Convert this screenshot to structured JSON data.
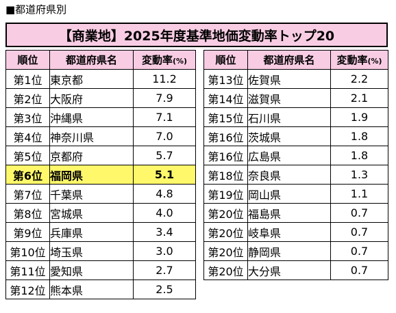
{
  "caption": "■都道府県別",
  "title": "【商業地】2025年度基準地価変動率トップ20",
  "headers": {
    "rank": "順位",
    "prefecture": "都道府県名",
    "change": "変動率",
    "unit": "(%)"
  },
  "left_rows": [
    {
      "rank": "第1位",
      "prefecture": "東京都",
      "change": "11.2"
    },
    {
      "rank": "第2位",
      "prefecture": "大阪府",
      "change": "7.9"
    },
    {
      "rank": "第3位",
      "prefecture": "沖縄県",
      "change": "7.1"
    },
    {
      "rank": "第4位",
      "prefecture": "神奈川県",
      "change": "7.0"
    },
    {
      "rank": "第5位",
      "prefecture": "京都府",
      "change": "5.7"
    },
    {
      "rank": "第6位",
      "prefecture": "福岡県",
      "change": "5.1",
      "highlight": true
    },
    {
      "rank": "第7位",
      "prefecture": "千葉県",
      "change": "4.8"
    },
    {
      "rank": "第8位",
      "prefecture": "宮城県",
      "change": "4.0"
    },
    {
      "rank": "第9位",
      "prefecture": "兵庫県",
      "change": "3.4"
    },
    {
      "rank": "第10位",
      "prefecture": "埼玉県",
      "change": "3.0"
    },
    {
      "rank": "第11位",
      "prefecture": "愛知県",
      "change": "2.7"
    },
    {
      "rank": "第12位",
      "prefecture": "熊本県",
      "change": "2.5"
    }
  ],
  "right_rows": [
    {
      "rank": "第13位",
      "prefecture": "佐賀県",
      "change": "2.2"
    },
    {
      "rank": "第14位",
      "prefecture": "滋賀県",
      "change": "2.1"
    },
    {
      "rank": "第15位",
      "prefecture": "石川県",
      "change": "1.9"
    },
    {
      "rank": "第16位",
      "prefecture": "茨城県",
      "change": "1.8"
    },
    {
      "rank": "第16位",
      "prefecture": "広島県",
      "change": "1.8"
    },
    {
      "rank": "第18位",
      "prefecture": "奈良県",
      "change": "1.3"
    },
    {
      "rank": "第19位",
      "prefecture": "岡山県",
      "change": "1.1"
    },
    {
      "rank": "第20位",
      "prefecture": "福島県",
      "change": "0.7"
    },
    {
      "rank": "第20位",
      "prefecture": "岐阜県",
      "change": "0.7"
    },
    {
      "rank": "第20位",
      "prefecture": "静岡県",
      "change": "0.7"
    },
    {
      "rank": "第20位",
      "prefecture": "大分県",
      "change": "0.7"
    }
  ]
}
